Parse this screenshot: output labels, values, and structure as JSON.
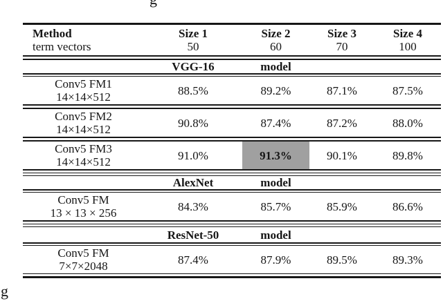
{
  "page": {
    "background": "#ffffff",
    "rule_color": "#161616",
    "highlight_color": "#a0a0a0"
  },
  "fragments": {
    "top": "g",
    "bottom": "g"
  },
  "table": {
    "header": {
      "col1_line1": "Method",
      "col1_line2": "term vectors",
      "size_cols": [
        {
          "label": "Size 1",
          "value": "50"
        },
        {
          "label": "Size 2",
          "value": "60"
        },
        {
          "label": "Size 3",
          "value": "70"
        },
        {
          "label": "Size 4",
          "value": "100"
        }
      ]
    },
    "sections": [
      {
        "model": "VGG-16",
        "model_word": "model",
        "rows": [
          {
            "name_line1": "Conv5 FM1",
            "name_line2": "14×14×512",
            "values": [
              "88.5%",
              "89.2%",
              "87.1%",
              "87.5%"
            ],
            "highlight_index": -1
          },
          {
            "name_line1": "Conv5 FM2",
            "name_line2": "14×14×512",
            "values": [
              "90.8%",
              "87.4%",
              "87.2%",
              "88.0%"
            ],
            "highlight_index": -1
          },
          {
            "name_line1": "Conv5 FM3",
            "name_line2": "14×14×512",
            "values": [
              "91.0%",
              "91.3%",
              "90.1%",
              "89.8%"
            ],
            "highlight_index": 1
          }
        ]
      },
      {
        "model": "AlexNet",
        "model_word": "model",
        "rows": [
          {
            "name_line1": "Conv5 FM",
            "name_line2": "13 × 13 × 256",
            "values": [
              "84.3%",
              "85.7%",
              "85.9%",
              "86.6%"
            ],
            "highlight_index": -1
          }
        ]
      },
      {
        "model": "ResNet-50",
        "model_word": "model",
        "rows": [
          {
            "name_line1": "Conv5 FM",
            "name_line2": "7×7×2048",
            "values": [
              "87.4%",
              "87.9%",
              "89.5%",
              "89.3%"
            ],
            "highlight_index": -1
          }
        ]
      }
    ]
  }
}
